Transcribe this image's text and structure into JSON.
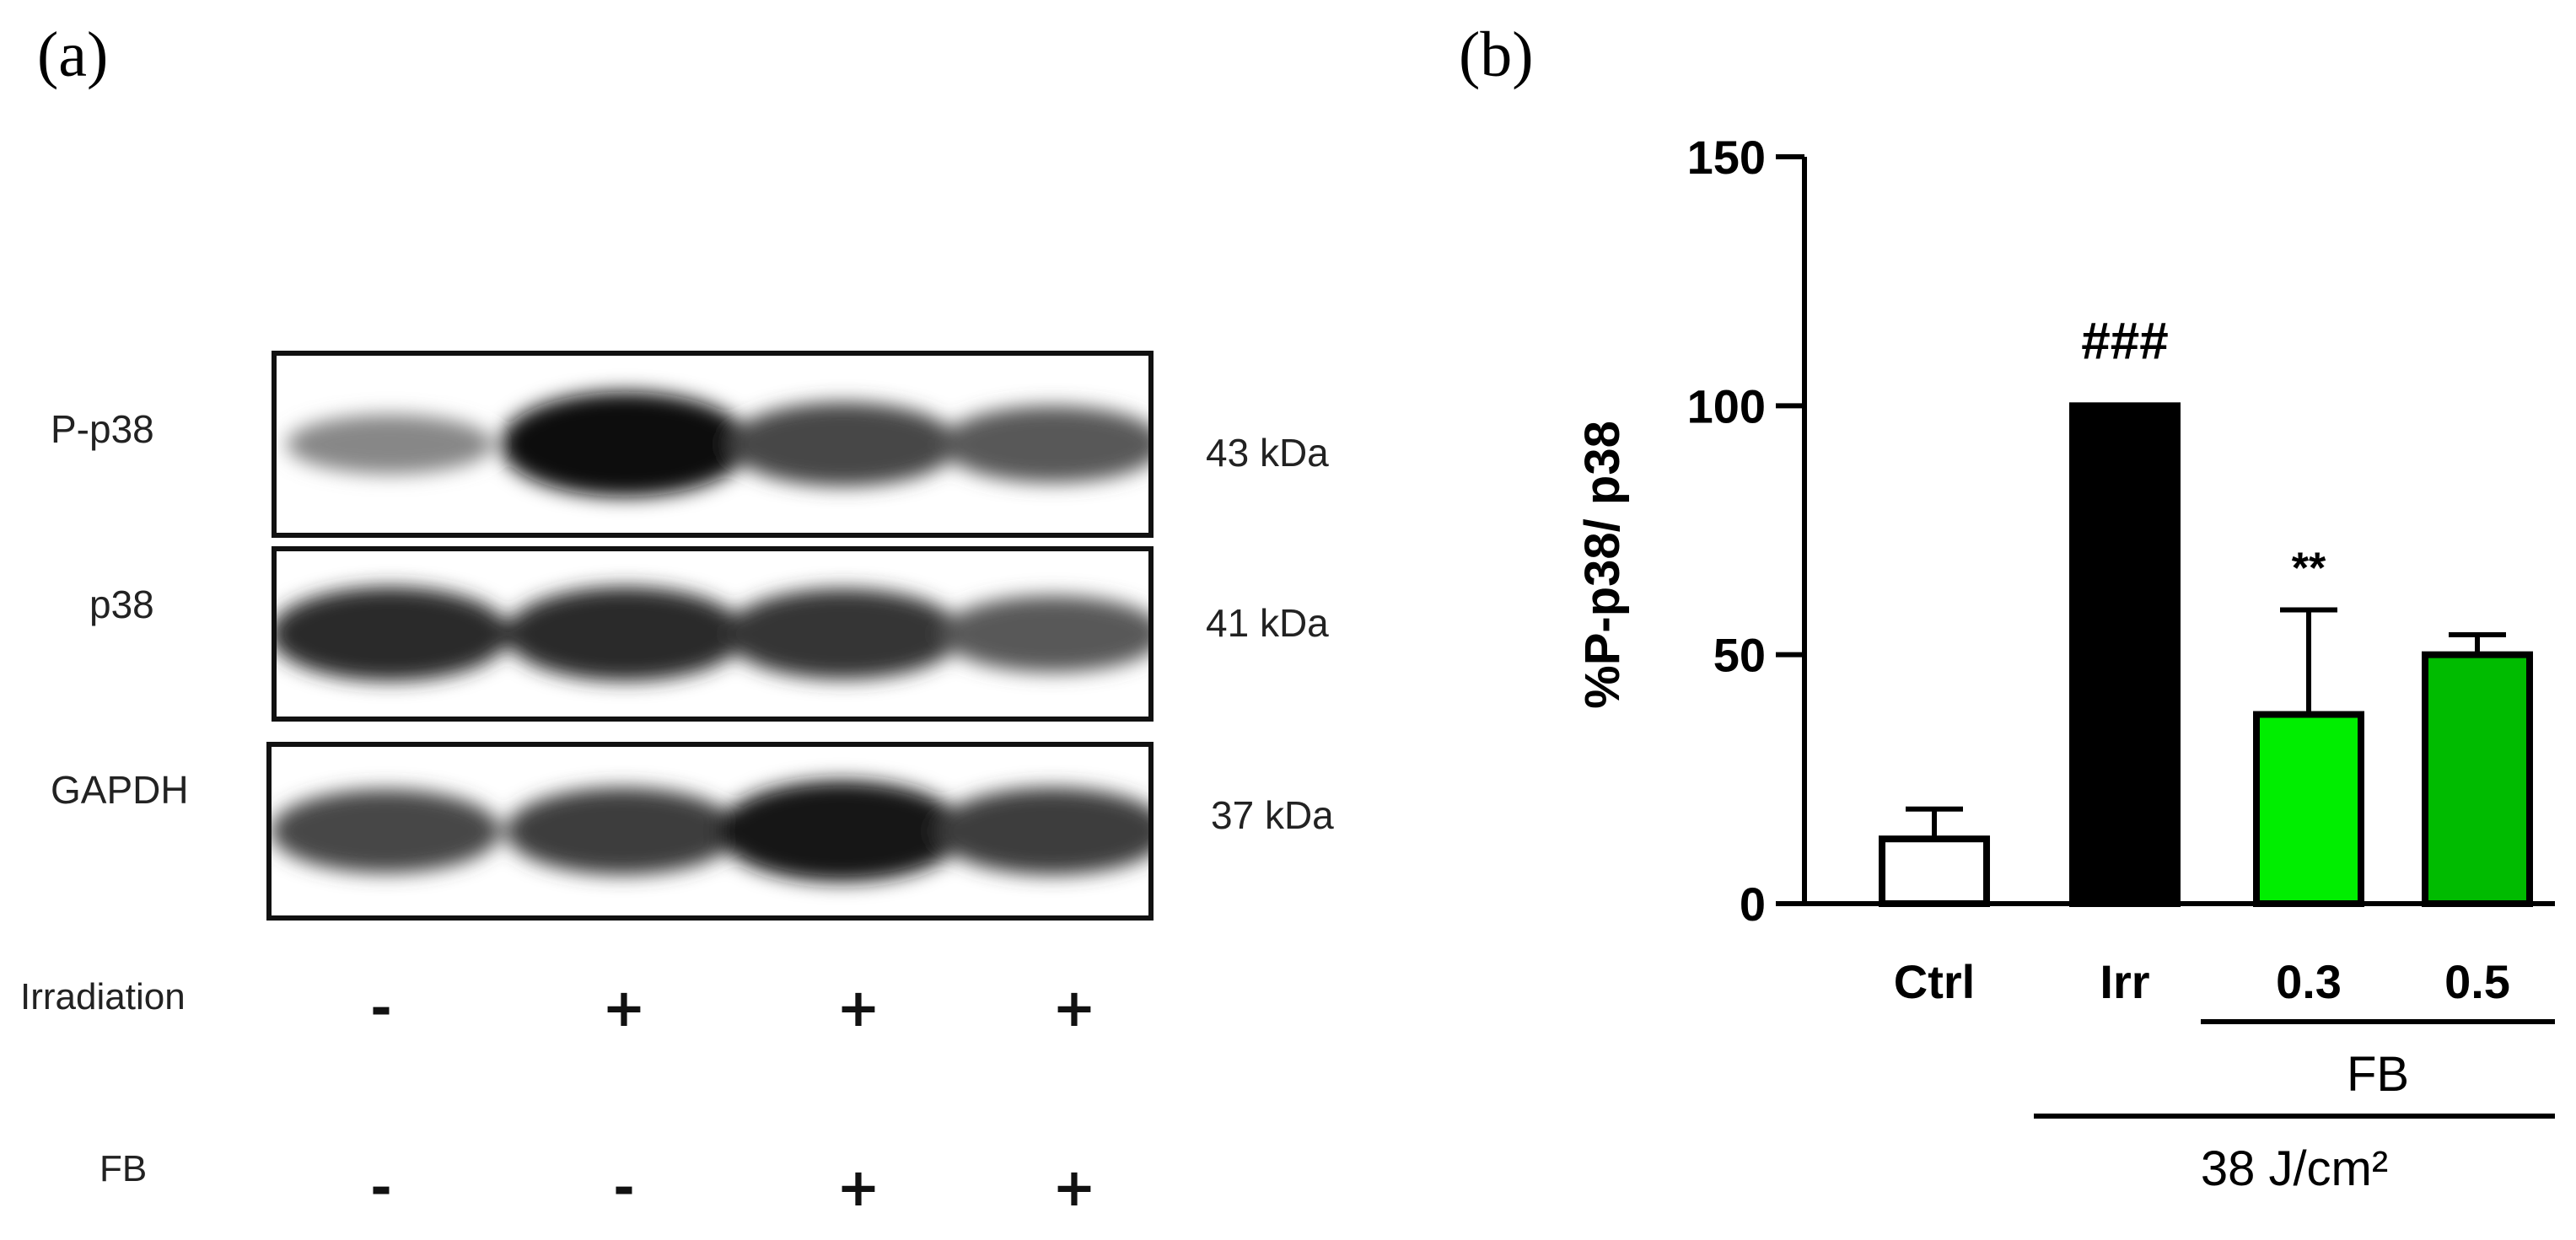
{
  "panel_a": {
    "label": "(a)",
    "blots": [
      {
        "protein": "P-p38",
        "kda": "43 kDa",
        "intensities": [
          0.35,
          1.0,
          0.7,
          0.6
        ]
      },
      {
        "protein": "p38",
        "kda": "41 kDa",
        "intensities": [
          0.85,
          0.85,
          0.8,
          0.6
        ]
      },
      {
        "protein": "GAPDH",
        "kda": "37 kDa",
        "intensities": [
          0.7,
          0.75,
          0.95,
          0.75
        ]
      }
    ],
    "conditions": [
      {
        "name": "Irradiation",
        "signs": [
          "-",
          "+",
          "+",
          "+"
        ]
      },
      {
        "name": "FB",
        "signs": [
          "-",
          "-",
          "+",
          "+"
        ]
      }
    ]
  },
  "panel_b": {
    "label": "(b)",
    "colors": {
      "ctrl": "#ffffff",
      "irr": "#000000",
      "fb03": "#00ee00",
      "fb05": "#00bb00"
    }
  },
  "chart_data": {
    "type": "bar",
    "categories": [
      "Ctrl",
      "Irr",
      "0.3",
      "0.5"
    ],
    "values": [
      13,
      100,
      38,
      50
    ],
    "errors": [
      6,
      0,
      21,
      4
    ],
    "annotations": [
      "",
      "###",
      "**",
      ""
    ],
    "ylabel": "%P-p38/ p38",
    "ylim": [
      0,
      150
    ],
    "yticks": [
      0,
      50,
      100,
      150
    ],
    "group_labels": [
      {
        "label": "FB",
        "categories": [
          "0.3",
          "0.5"
        ]
      },
      {
        "label": "38 J/cm²",
        "categories": [
          "Irr",
          "0.3",
          "0.5"
        ]
      }
    ]
  }
}
